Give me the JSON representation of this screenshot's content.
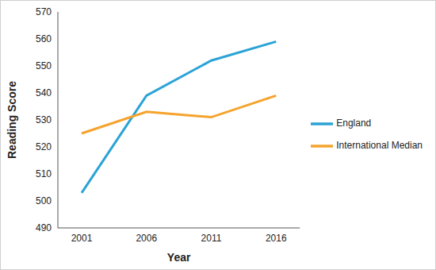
{
  "chart_data": {
    "type": "line",
    "x_label": "Year",
    "y_label": "Reading Score",
    "categories": [
      "2001",
      "2006",
      "2011",
      "2016"
    ],
    "series": [
      {
        "name": "England",
        "color": "#2ba3d6",
        "values": [
          503,
          539,
          552,
          559
        ]
      },
      {
        "name": "International Median",
        "color": "#f5a32c",
        "values": [
          525,
          533,
          531,
          539
        ]
      }
    ],
    "ylim": [
      490,
      570
    ],
    "yticks": [
      490,
      500,
      510,
      520,
      530,
      540,
      550,
      560,
      570
    ],
    "grid": false,
    "legend": "right"
  }
}
